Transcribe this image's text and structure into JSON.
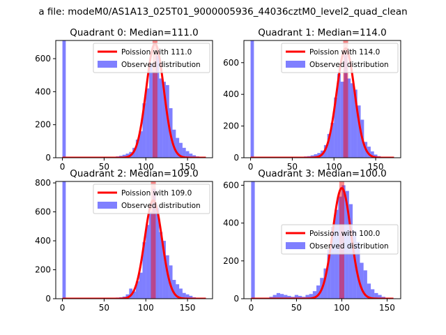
{
  "figure": {
    "suptitle": "a file: modeM0/AS1A13_025T01_9000005936_44036cztM0_level2_quad_clean"
  },
  "colors": {
    "hist": "#0000ff",
    "fit": "#ff0000",
    "median": "#ff0000"
  },
  "chart_data": [
    {
      "type": "bar",
      "title": "Quadrant 0: Median=111.0",
      "xlim": [
        -8,
        180
      ],
      "ylim": [
        0,
        710
      ],
      "xticks": [
        0,
        50,
        100,
        150
      ],
      "yticks": [
        0,
        200,
        400,
        600
      ],
      "legend_position": "upper right",
      "legend": [
        "Poission with 111.0",
        "Observed distribution"
      ],
      "median": 111.0,
      "fit_peak": 690,
      "fit_sigma": 10.5,
      "bin_width": 4,
      "hist_x": [
        0,
        4,
        8,
        12,
        16,
        20,
        24,
        28,
        32,
        36,
        40,
        44,
        48,
        52,
        56,
        60,
        64,
        68,
        72,
        76,
        80,
        84,
        88,
        92,
        96,
        100,
        104,
        108,
        112,
        116,
        120,
        124,
        128,
        132,
        136,
        140,
        144,
        148,
        152,
        156,
        160,
        164,
        168
      ],
      "hist_y": [
        710,
        0,
        0,
        0,
        2,
        0,
        0,
        0,
        3,
        0,
        2,
        0,
        3,
        5,
        3,
        5,
        8,
        12,
        18,
        25,
        35,
        60,
        110,
        160,
        330,
        420,
        570,
        520,
        620,
        480,
        460,
        440,
        300,
        170,
        120,
        90,
        60,
        40,
        25,
        15,
        8,
        5,
        3
      ]
    },
    {
      "type": "bar",
      "title": "Quadrant 1: Median=114.0",
      "xlim": [
        -8,
        180
      ],
      "ylim": [
        0,
        740
      ],
      "xticks": [
        0,
        50,
        100,
        150
      ],
      "yticks": [
        0,
        200,
        400,
        600
      ],
      "legend_position": "upper right",
      "legend": [
        "Poission with 114.0",
        "Observed distribution"
      ],
      "median": 114.0,
      "fit_peak": 690,
      "fit_sigma": 10.7,
      "bin_width": 4,
      "hist_x": [
        0,
        4,
        8,
        12,
        16,
        20,
        24,
        28,
        32,
        36,
        40,
        44,
        48,
        52,
        56,
        60,
        64,
        68,
        72,
        76,
        80,
        84,
        88,
        92,
        96,
        100,
        104,
        108,
        112,
        116,
        120,
        124,
        128,
        132,
        136,
        140,
        144,
        148,
        152,
        156,
        160,
        164,
        168
      ],
      "hist_y": [
        740,
        0,
        0,
        0,
        0,
        2,
        0,
        3,
        0,
        2,
        0,
        3,
        0,
        5,
        3,
        5,
        8,
        10,
        15,
        22,
        30,
        45,
        80,
        150,
        220,
        380,
        530,
        480,
        650,
        500,
        470,
        430,
        330,
        240,
        100,
        70,
        40,
        20,
        10,
        5,
        3,
        2,
        0
      ]
    },
    {
      "type": "bar",
      "title": "Quadrant 2: Median=109.0",
      "xlim": [
        -8,
        180
      ],
      "ylim": [
        0,
        810
      ],
      "xticks": [
        0,
        50,
        100,
        150
      ],
      "yticks": [
        0,
        200,
        400,
        600,
        800
      ],
      "legend_position": "upper right",
      "legend": [
        "Poission with 109.0",
        "Observed distribution"
      ],
      "median": 109.0,
      "fit_peak": 680,
      "fit_sigma": 10.4,
      "bin_width": 4,
      "hist_x": [
        0,
        4,
        8,
        12,
        16,
        20,
        24,
        28,
        32,
        36,
        40,
        44,
        48,
        52,
        56,
        60,
        64,
        68,
        72,
        76,
        80,
        84,
        88,
        92,
        96,
        100,
        104,
        108,
        112,
        116,
        120,
        124,
        128,
        132,
        136,
        140,
        144,
        148,
        152,
        156,
        160,
        164,
        168
      ],
      "hist_y": [
        810,
        0,
        0,
        0,
        0,
        2,
        0,
        0,
        2,
        0,
        2,
        0,
        3,
        2,
        3,
        5,
        8,
        10,
        15,
        30,
        70,
        50,
        120,
        180,
        390,
        510,
        600,
        760,
        630,
        460,
        400,
        300,
        230,
        130,
        100,
        70,
        40,
        30,
        20,
        10,
        5,
        3,
        2
      ]
    },
    {
      "type": "bar",
      "title": "Quadrant 3: Median=100.0",
      "xlim": [
        -8,
        165
      ],
      "ylim": [
        0,
        620
      ],
      "xticks": [
        0,
        50,
        100,
        150
      ],
      "yticks": [
        0,
        200,
        400,
        600
      ],
      "legend_position": "center right",
      "legend": [
        "Poission with 100.0",
        "Observed distribution"
      ],
      "median": 100.0,
      "fit_peak": 585,
      "fit_sigma": 10.0,
      "bin_width": 4,
      "hist_x": [
        0,
        4,
        8,
        12,
        16,
        20,
        24,
        28,
        32,
        36,
        40,
        44,
        48,
        52,
        56,
        60,
        64,
        68,
        72,
        76,
        80,
        84,
        88,
        92,
        96,
        100,
        104,
        108,
        112,
        116,
        120,
        124,
        128,
        132,
        136,
        140,
        144,
        148,
        152,
        156
      ],
      "hist_y": [
        620,
        0,
        0,
        0,
        5,
        10,
        20,
        30,
        25,
        20,
        15,
        10,
        20,
        15,
        10,
        20,
        25,
        40,
        70,
        110,
        160,
        260,
        380,
        470,
        540,
        600,
        570,
        500,
        360,
        300,
        190,
        150,
        80,
        50,
        30,
        20,
        10,
        5,
        3,
        2
      ]
    }
  ]
}
